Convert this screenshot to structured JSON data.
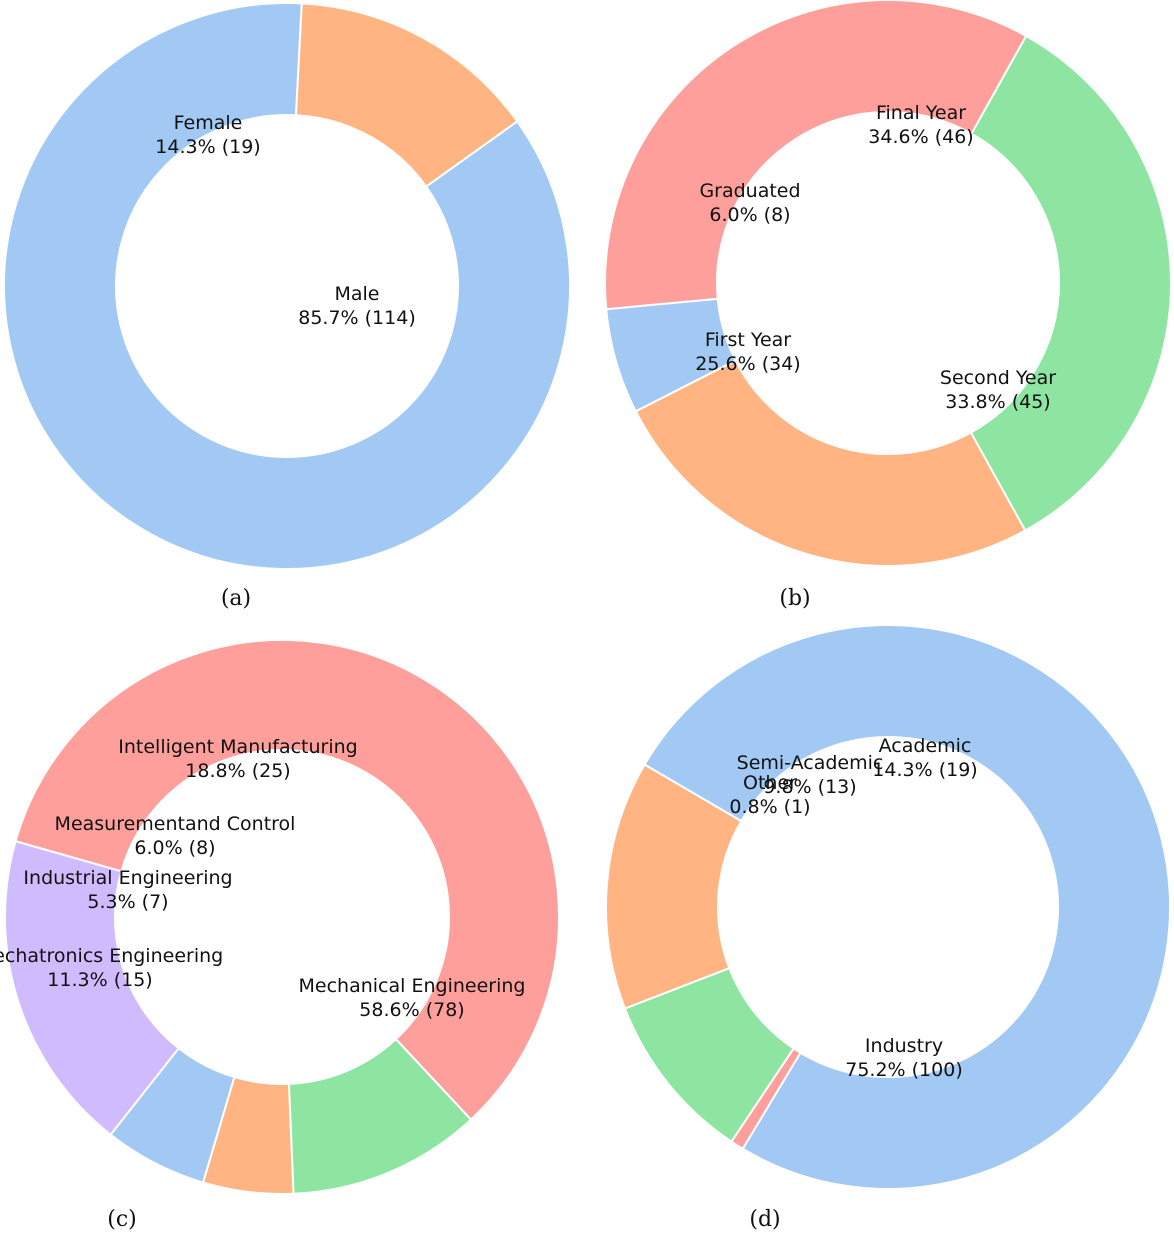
{
  "chart_data": [
    {
      "type": "pie",
      "subtype": "donut",
      "caption": "(a)",
      "slices": [
        {
          "label": "Male",
          "percent": "85.7%",
          "count": 114,
          "color": "#a1c9f4"
        },
        {
          "label": "Female",
          "percent": "14.3%",
          "count": 19,
          "color": "#ffb482"
        }
      ]
    },
    {
      "type": "pie",
      "subtype": "donut",
      "caption": "(b)",
      "slices": [
        {
          "label": "Second Year",
          "percent": "33.8%",
          "count": 45,
          "color": "#8de5a1"
        },
        {
          "label": "Final Year",
          "percent": "34.6%",
          "count": 46,
          "color": "#ff9f9b"
        },
        {
          "label": "Graduated",
          "percent": "6.0%",
          "count": 8,
          "color": "#a1c9f4"
        },
        {
          "label": "First Year",
          "percent": "25.6%",
          "count": 34,
          "color": "#ffb482"
        }
      ]
    },
    {
      "type": "pie",
      "subtype": "donut",
      "caption": "(c)",
      "slices": [
        {
          "label": "Mechanical Engineering",
          "percent": "58.6%",
          "count": 78,
          "color": "#ff9f9b"
        },
        {
          "label": "Intelligent Manufacturing",
          "percent": "18.8%",
          "count": 25,
          "color": "#d0bbff"
        },
        {
          "label": "Measurementand Control",
          "percent": "6.0%",
          "count": 8,
          "color": "#a1c9f4"
        },
        {
          "label": "Industrial Engineering",
          "percent": "5.3%",
          "count": 7,
          "color": "#ffb482"
        },
        {
          "label": "Mechatronics Engineering",
          "percent": "11.3%",
          "count": 15,
          "color": "#8de5a1"
        }
      ]
    },
    {
      "type": "pie",
      "subtype": "donut",
      "caption": "(d)",
      "slices": [
        {
          "label": "Industry",
          "percent": "75.2%",
          "count": 100,
          "color": "#a1c9f4"
        },
        {
          "label": "Academic",
          "percent": "14.3%",
          "count": 19,
          "color": "#ffb482"
        },
        {
          "label": "Semi-Academic",
          "percent": "9.8%",
          "count": 13,
          "color": "#8de5a1"
        },
        {
          "label": "Other",
          "percent": "0.8%",
          "count": 1,
          "color": "#ff9f9b"
        }
      ]
    }
  ]
}
